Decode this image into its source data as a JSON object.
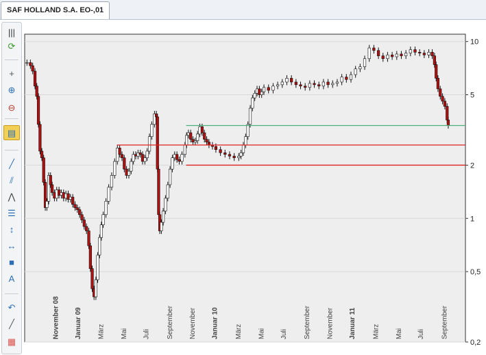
{
  "tab": {
    "title": "SAF HOLLAND S.A. EO-,01"
  },
  "toolbar": {
    "buttons": [
      {
        "name": "columns-icon",
        "glyph": "|||",
        "color": "#333"
      },
      {
        "name": "refresh-icon",
        "glyph": "⟳",
        "color": "#3a9a2a"
      },
      {
        "name": "crosshair-icon",
        "glyph": "+",
        "color": "#555"
      },
      {
        "name": "zoom-in-icon",
        "glyph": "⊕",
        "color": "#2d6fb5"
      },
      {
        "name": "zoom-out-icon",
        "glyph": "⊖",
        "color": "#c0392b"
      },
      {
        "name": "chart-type-icon",
        "glyph": "▤",
        "color": "#2d6fb5"
      },
      {
        "name": "trendline-icon",
        "glyph": "╱",
        "color": "#2d6fb5"
      },
      {
        "name": "channel-icon",
        "glyph": "⫽",
        "color": "#2d6fb5"
      },
      {
        "name": "peak-icon",
        "glyph": "⋀",
        "color": "#444"
      },
      {
        "name": "fibonacci-icon",
        "glyph": "☰",
        "color": "#2d6fb5"
      },
      {
        "name": "vertical-line-icon",
        "glyph": "↕",
        "color": "#2d6fb5"
      },
      {
        "name": "horizontal-line-icon",
        "glyph": "↔",
        "color": "#2d6fb5"
      },
      {
        "name": "rectangle-icon",
        "glyph": "■",
        "color": "#2d6fb5"
      },
      {
        "name": "text-icon",
        "glyph": "A",
        "color": "#2d6fb5"
      },
      {
        "name": "arc-icon",
        "glyph": "↶",
        "color": "#2d6fb5"
      },
      {
        "name": "line-icon",
        "glyph": "╱",
        "color": "#555"
      },
      {
        "name": "palette-icon",
        "glyph": "▦",
        "color": "#d9534f"
      }
    ]
  },
  "chart_data": {
    "type": "line",
    "ylim": [
      0.2,
      11
    ],
    "ytick_labels": [
      "10",
      "5",
      "2",
      "1",
      "0,5",
      "0,2"
    ],
    "yticks": [
      10,
      5,
      2,
      1,
      0.5,
      0.2
    ],
    "grid": true,
    "xlabels": [
      {
        "label": "November 08",
        "bold": true,
        "x": 0.08
      },
      {
        "label": "Januar 09",
        "bold": true,
        "x": 1.06
      },
      {
        "label": "März",
        "bold": false,
        "x": 2.06
      },
      {
        "label": "Mai",
        "bold": false,
        "x": 3.06
      },
      {
        "label": "Juli",
        "bold": false,
        "x": 4.03
      },
      {
        "label": "September",
        "bold": false,
        "x": 5.06
      },
      {
        "label": "November",
        "bold": false,
        "x": 6.06
      },
      {
        "label": "Januar 10",
        "bold": true,
        "x": 7.03
      },
      {
        "label": "März",
        "bold": false,
        "x": 8.06
      },
      {
        "label": "Mai",
        "bold": false,
        "x": 9.06
      },
      {
        "label": "Juli",
        "bold": false,
        "x": 10.03
      },
      {
        "label": "September",
        "bold": false,
        "x": 11.06
      },
      {
        "label": "November",
        "bold": false,
        "x": 12.06
      },
      {
        "label": "Januar 11",
        "bold": true,
        "x": 13.03
      },
      {
        "label": "März",
        "bold": false,
        "x": 14.06
      },
      {
        "label": "Mai",
        "bold": false,
        "x": 15.06
      },
      {
        "label": "Juli",
        "bold": false,
        "x": 16.03
      },
      {
        "label": "September",
        "bold": false,
        "x": 17.06
      }
    ],
    "x_range": [
      -1.25,
      18.0
    ],
    "series": [
      {
        "style": "candlestick",
        "points": [
          [
            -1.15,
            7.6
          ],
          [
            -1.0,
            7.3
          ],
          [
            -0.9,
            6.8
          ],
          [
            -0.8,
            5.6
          ],
          [
            -0.72,
            4.9
          ],
          [
            -0.65,
            3.4
          ],
          [
            -0.58,
            2.4
          ],
          [
            -0.5,
            2.2
          ],
          [
            -0.42,
            1.6
          ],
          [
            -0.35,
            1.15
          ],
          [
            -0.28,
            1.25
          ],
          [
            -0.2,
            1.75
          ],
          [
            -0.12,
            1.55
          ],
          [
            -0.05,
            1.4
          ],
          [
            0.05,
            1.3
          ],
          [
            0.15,
            1.45
          ],
          [
            0.25,
            1.35
          ],
          [
            0.35,
            1.4
          ],
          [
            0.45,
            1.3
          ],
          [
            0.55,
            1.38
          ],
          [
            0.65,
            1.28
          ],
          [
            0.75,
            1.32
          ],
          [
            0.85,
            1.2
          ],
          [
            0.95,
            1.15
          ],
          [
            1.05,
            1.12
          ],
          [
            1.15,
            1.05
          ],
          [
            1.25,
            0.98
          ],
          [
            1.35,
            0.9
          ],
          [
            1.45,
            0.85
          ],
          [
            1.55,
            0.7
          ],
          [
            1.62,
            0.52
          ],
          [
            1.7,
            0.4
          ],
          [
            1.78,
            0.36
          ],
          [
            1.86,
            0.45
          ],
          [
            1.94,
            0.62
          ],
          [
            2.02,
            0.78
          ],
          [
            2.1,
            0.92
          ],
          [
            2.18,
            1.05
          ],
          [
            2.3,
            1.25
          ],
          [
            2.42,
            1.5
          ],
          [
            2.55,
            1.75
          ],
          [
            2.68,
            2.1
          ],
          [
            2.8,
            2.5
          ],
          [
            2.9,
            2.3
          ],
          [
            3.0,
            2.2
          ],
          [
            3.1,
            1.9
          ],
          [
            3.2,
            1.75
          ],
          [
            3.3,
            1.85
          ],
          [
            3.4,
            2.1
          ],
          [
            3.5,
            2.3
          ],
          [
            3.6,
            2.25
          ],
          [
            3.7,
            2.35
          ],
          [
            3.8,
            2.3
          ],
          [
            3.9,
            2.1
          ],
          [
            4.0,
            2.2
          ],
          [
            4.1,
            2.4
          ],
          [
            4.2,
            2.9
          ],
          [
            4.3,
            3.4
          ],
          [
            4.42,
            3.9
          ],
          [
            4.5,
            3.75
          ],
          [
            4.55,
            1.9
          ],
          [
            4.6,
            1.05
          ],
          [
            4.65,
            0.85
          ],
          [
            4.72,
            0.95
          ],
          [
            4.8,
            1.1
          ],
          [
            4.9,
            1.3
          ],
          [
            5.0,
            1.55
          ],
          [
            5.1,
            1.9
          ],
          [
            5.2,
            2.2
          ],
          [
            5.3,
            2.3
          ],
          [
            5.4,
            2.15
          ],
          [
            5.5,
            2.1
          ],
          [
            5.62,
            2.3
          ],
          [
            5.75,
            2.6
          ],
          [
            5.82,
            2.95
          ],
          [
            5.9,
            3.05
          ],
          [
            6.0,
            2.8
          ],
          [
            6.1,
            2.7
          ],
          [
            6.2,
            2.75
          ],
          [
            6.3,
            3.0
          ],
          [
            6.4,
            3.3
          ],
          [
            6.5,
            3.05
          ],
          [
            6.6,
            2.8
          ],
          [
            6.7,
            2.7
          ],
          [
            6.8,
            2.6
          ],
          [
            6.95,
            2.55
          ],
          [
            7.1,
            2.45
          ],
          [
            7.3,
            2.35
          ],
          [
            7.5,
            2.3
          ],
          [
            7.7,
            2.25
          ],
          [
            7.9,
            2.2
          ],
          [
            8.1,
            2.25
          ],
          [
            8.2,
            2.35
          ],
          [
            8.3,
            2.6
          ],
          [
            8.4,
            2.9
          ],
          [
            8.5,
            3.4
          ],
          [
            8.6,
            4.2
          ],
          [
            8.7,
            4.8
          ],
          [
            8.8,
            5.1
          ],
          [
            8.9,
            5.4
          ],
          [
            9.0,
            5.0
          ],
          [
            9.1,
            5.2
          ],
          [
            9.2,
            5.5
          ],
          [
            9.4,
            5.3
          ],
          [
            9.6,
            5.6
          ],
          [
            9.8,
            5.7
          ],
          [
            10.0,
            5.9
          ],
          [
            10.2,
            6.2
          ],
          [
            10.4,
            5.9
          ],
          [
            10.6,
            5.7
          ],
          [
            10.8,
            5.6
          ],
          [
            11.0,
            5.5
          ],
          [
            11.2,
            5.8
          ],
          [
            11.4,
            5.7
          ],
          [
            11.6,
            5.6
          ],
          [
            11.8,
            5.9
          ],
          [
            12.0,
            5.7
          ],
          [
            12.2,
            5.8
          ],
          [
            12.4,
            5.9
          ],
          [
            12.6,
            6.3
          ],
          [
            12.8,
            6.1
          ],
          [
            13.0,
            6.5
          ],
          [
            13.2,
            7.0
          ],
          [
            13.4,
            7.2
          ],
          [
            13.6,
            8.0
          ],
          [
            13.8,
            9.2
          ],
          [
            14.0,
            8.9
          ],
          [
            14.2,
            8.3
          ],
          [
            14.4,
            8.0
          ],
          [
            14.6,
            8.4
          ],
          [
            14.8,
            8.2
          ],
          [
            15.0,
            8.5
          ],
          [
            15.2,
            8.3
          ],
          [
            15.4,
            8.6
          ],
          [
            15.6,
            9.0
          ],
          [
            15.8,
            8.7
          ],
          [
            16.0,
            8.6
          ],
          [
            16.2,
            8.4
          ],
          [
            16.4,
            8.7
          ],
          [
            16.55,
            8.3
          ],
          [
            16.65,
            7.4
          ],
          [
            16.72,
            6.2
          ],
          [
            16.8,
            5.4
          ],
          [
            16.9,
            4.9
          ],
          [
            17.0,
            4.6
          ],
          [
            17.1,
            4.3
          ],
          [
            17.2,
            3.6
          ],
          [
            17.25,
            3.35
          ]
        ]
      }
    ],
    "lines": [
      {
        "color": "#4caf7a",
        "y": 3.35,
        "x_start": 5.8,
        "x_end": 18.0
      },
      {
        "color": "#e02020",
        "y": 2.6,
        "x_start": 2.78,
        "x_end": 18.0
      },
      {
        "color": "#e02020",
        "y": 2.0,
        "x_start": 5.8,
        "x_end": 18.0
      }
    ],
    "colors": {
      "up": "#ffffff",
      "down": "#b01010",
      "wick": "#111111",
      "grid": "#d8d8d8",
      "bg": "#eeeeee"
    }
  }
}
